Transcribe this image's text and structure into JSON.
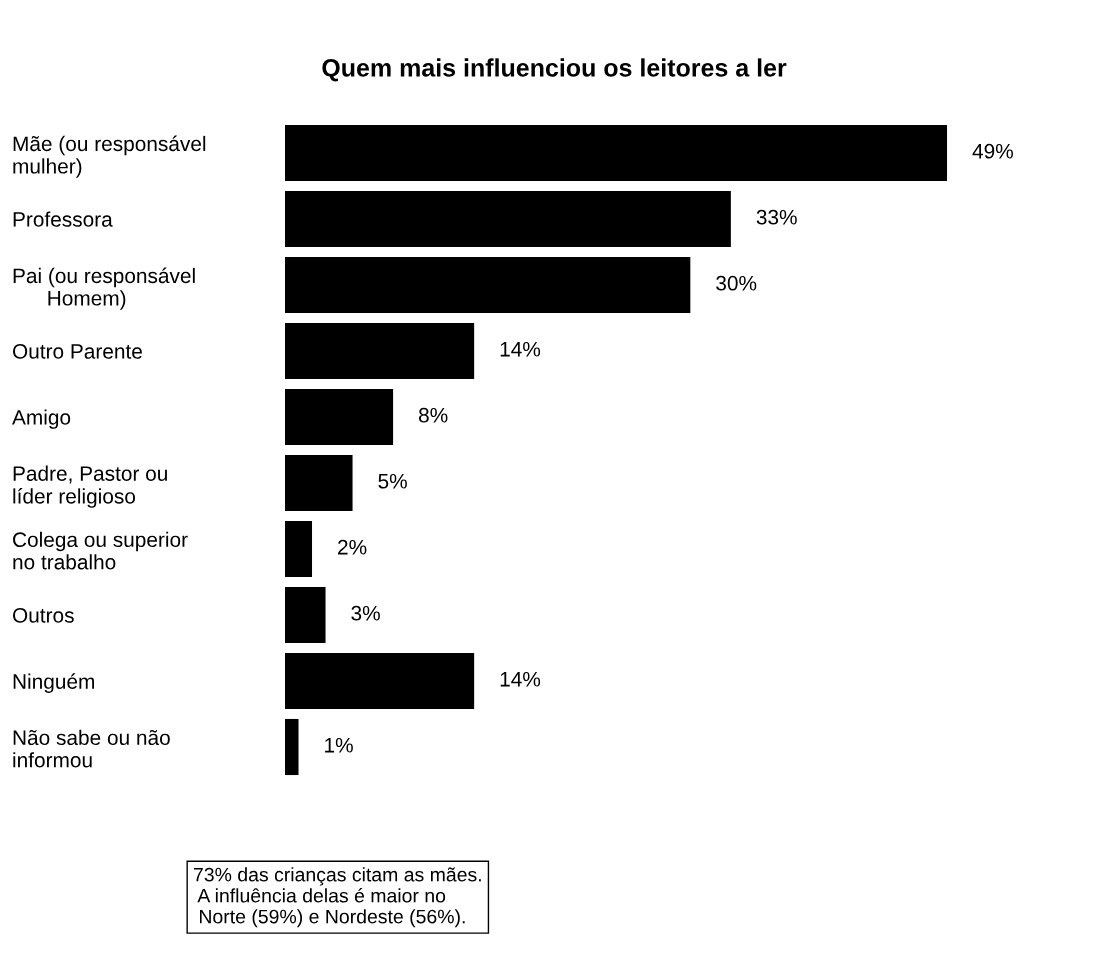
{
  "chart_data": {
    "type": "bar",
    "orientation": "horizontal",
    "title": "Quem mais influenciou os leitores a ler",
    "categories": [
      "Mãe (ou responsável\nmulher)",
      "Professora",
      "Pai (ou responsável\n      Homem)",
      "Outro Parente",
      "Amigo",
      "Padre, Pastor ou\nlíder religioso",
      "Colega ou superior\nno trabalho",
      "Outros",
      "Ninguém",
      "Não sabe ou não\ninformou"
    ],
    "values": [
      49,
      33,
      30,
      14,
      8,
      5,
      2,
      3,
      14,
      1
    ],
    "value_labels": [
      "49%",
      "33%",
      "30%",
      "14%",
      "8%",
      "5%",
      "2%",
      "3%",
      "14%",
      "1%"
    ],
    "color": "#000000",
    "grid": false,
    "legend": false,
    "annotations": [
      "73% das crianças citam as mães.\n A influência delas é maior no\n Norte (59%) e Nordeste (56%)."
    ]
  }
}
